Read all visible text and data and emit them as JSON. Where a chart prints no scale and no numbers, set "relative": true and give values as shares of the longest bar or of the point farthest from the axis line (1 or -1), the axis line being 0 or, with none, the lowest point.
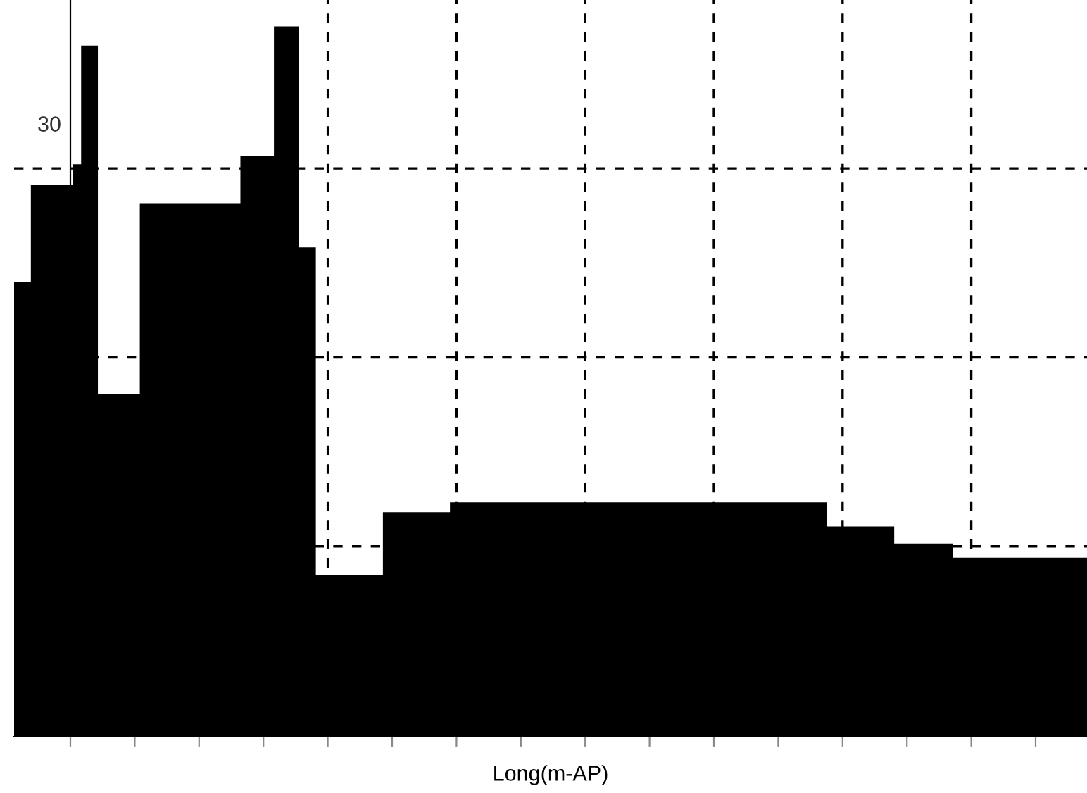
{
  "chart_data": {
    "type": "area",
    "relative": true,
    "xlabel": "Long(m-AP)",
    "annotations": [
      "30"
    ],
    "grid": true,
    "color": "#000000",
    "categories": [
      null,
      null,
      null,
      null,
      null,
      null,
      null,
      null,
      null,
      null,
      null,
      null,
      null,
      null,
      null,
      null,
      null,
      null,
      null,
      null,
      null,
      null,
      null,
      null,
      null,
      null,
      null,
      null,
      null,
      null,
      null,
      null,
      null,
      null,
      null,
      null,
      null,
      null,
      null,
      null,
      null,
      null,
      null,
      null,
      null,
      null,
      null,
      null,
      null,
      null,
      null,
      null,
      null,
      null,
      null,
      null,
      null,
      null,
      null,
      null,
      null,
      null,
      null,
      null,
      null,
      null,
      null,
      null,
      null,
      null,
      null,
      null,
      null,
      null,
      null,
      null,
      null,
      null,
      null,
      null,
      null,
      null,
      null,
      null,
      null,
      null,
      null,
      null,
      null,
      null,
      null,
      null,
      null,
      null,
      null,
      null,
      null,
      null,
      null,
      null,
      null,
      null,
      null,
      null,
      null,
      null,
      null,
      null,
      null,
      null,
      null,
      null,
      null,
      null,
      null,
      null,
      null,
      null,
      null,
      null,
      null,
      null,
      null,
      null,
      null,
      null,
      null,
      null
    ],
    "values": [
      0.64,
      0.64,
      0.777,
      0.777,
      0.777,
      0.777,
      0.777,
      0.806,
      0.973,
      0.973,
      0.483,
      0.483,
      0.483,
      0.483,
      0.483,
      0.751,
      0.751,
      0.751,
      0.751,
      0.751,
      0.751,
      0.751,
      0.751,
      0.751,
      0.751,
      0.751,
      0.751,
      0.818,
      0.818,
      0.818,
      0.818,
      1.0,
      1.0,
      1.0,
      0.689,
      0.689,
      0.227,
      0.227,
      0.227,
      0.227,
      0.227,
      0.227,
      0.227,
      0.227,
      0.316,
      0.316,
      0.316,
      0.316,
      0.316,
      0.316,
      0.316,
      0.316,
      0.33,
      0.33,
      0.33,
      0.33,
      0.33,
      0.33,
      0.33,
      0.33,
      0.33,
      0.33,
      0.33,
      0.33,
      0.33,
      0.33,
      0.33,
      0.33,
      0.33,
      0.33,
      0.33,
      0.33,
      0.33,
      0.33,
      0.33,
      0.33,
      0.33,
      0.33,
      0.33,
      0.33,
      0.33,
      0.33,
      0.33,
      0.33,
      0.33,
      0.33,
      0.33,
      0.33,
      0.33,
      0.33,
      0.33,
      0.33,
      0.33,
      0.33,
      0.33,
      0.33,
      0.33,
      0.296,
      0.296,
      0.296,
      0.296,
      0.296,
      0.296,
      0.296,
      0.296,
      0.272,
      0.272,
      0.272,
      0.272,
      0.272,
      0.272,
      0.272,
      0.252,
      0.252,
      0.252,
      0.252,
      0.252,
      0.252,
      0.252,
      0.252,
      0.252,
      0.252,
      0.252,
      0.252,
      0.252,
      0.252,
      0.252,
      0.252
    ]
  }
}
